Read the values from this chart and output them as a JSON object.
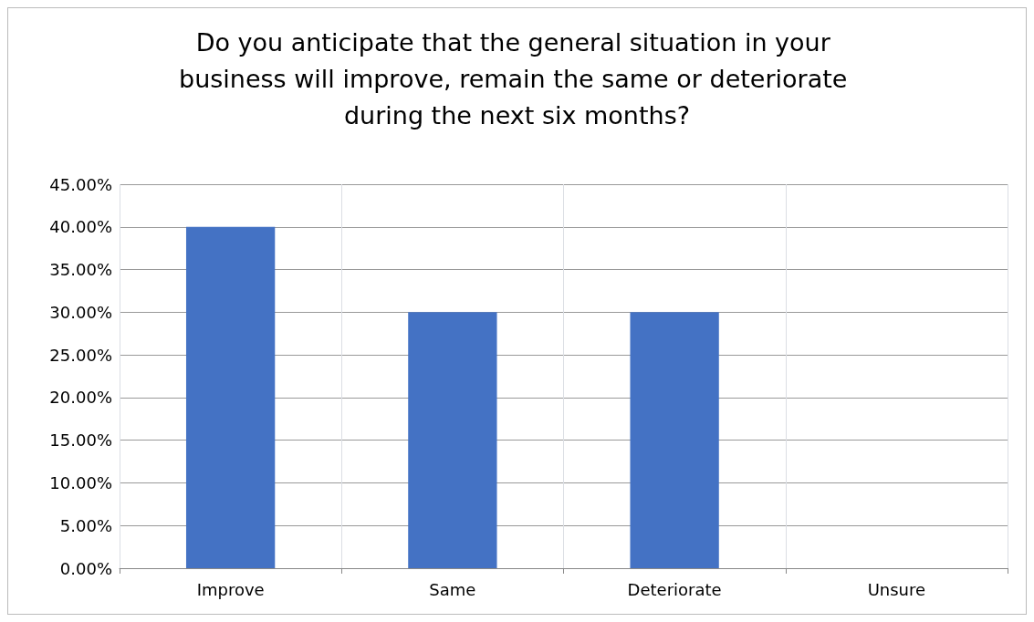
{
  "chart_data": {
    "type": "bar",
    "title": "Do you anticipate that the general situation in your business will improve, remain the same or deteriorate during the next six months?",
    "categories": [
      "Improve",
      "Same",
      "Deteriorate",
      "Unsure"
    ],
    "values": [
      40,
      30,
      30,
      0
    ],
    "color": "#4472c4",
    "ylim": [
      0,
      45
    ],
    "yticks": [
      {
        "value": 0,
        "label": "0.00%"
      },
      {
        "value": 5,
        "label": "5.00%"
      },
      {
        "value": 10,
        "label": "10.00%"
      },
      {
        "value": 15,
        "label": "15.00%"
      },
      {
        "value": 20,
        "label": "20.00%"
      },
      {
        "value": 25,
        "label": "25.00%"
      },
      {
        "value": 30,
        "label": "30.00%"
      },
      {
        "value": 35,
        "label": "35.00%"
      },
      {
        "value": 40,
        "label": "40.00%"
      },
      {
        "value": 45,
        "label": "45.00%"
      }
    ],
    "grid": true
  }
}
